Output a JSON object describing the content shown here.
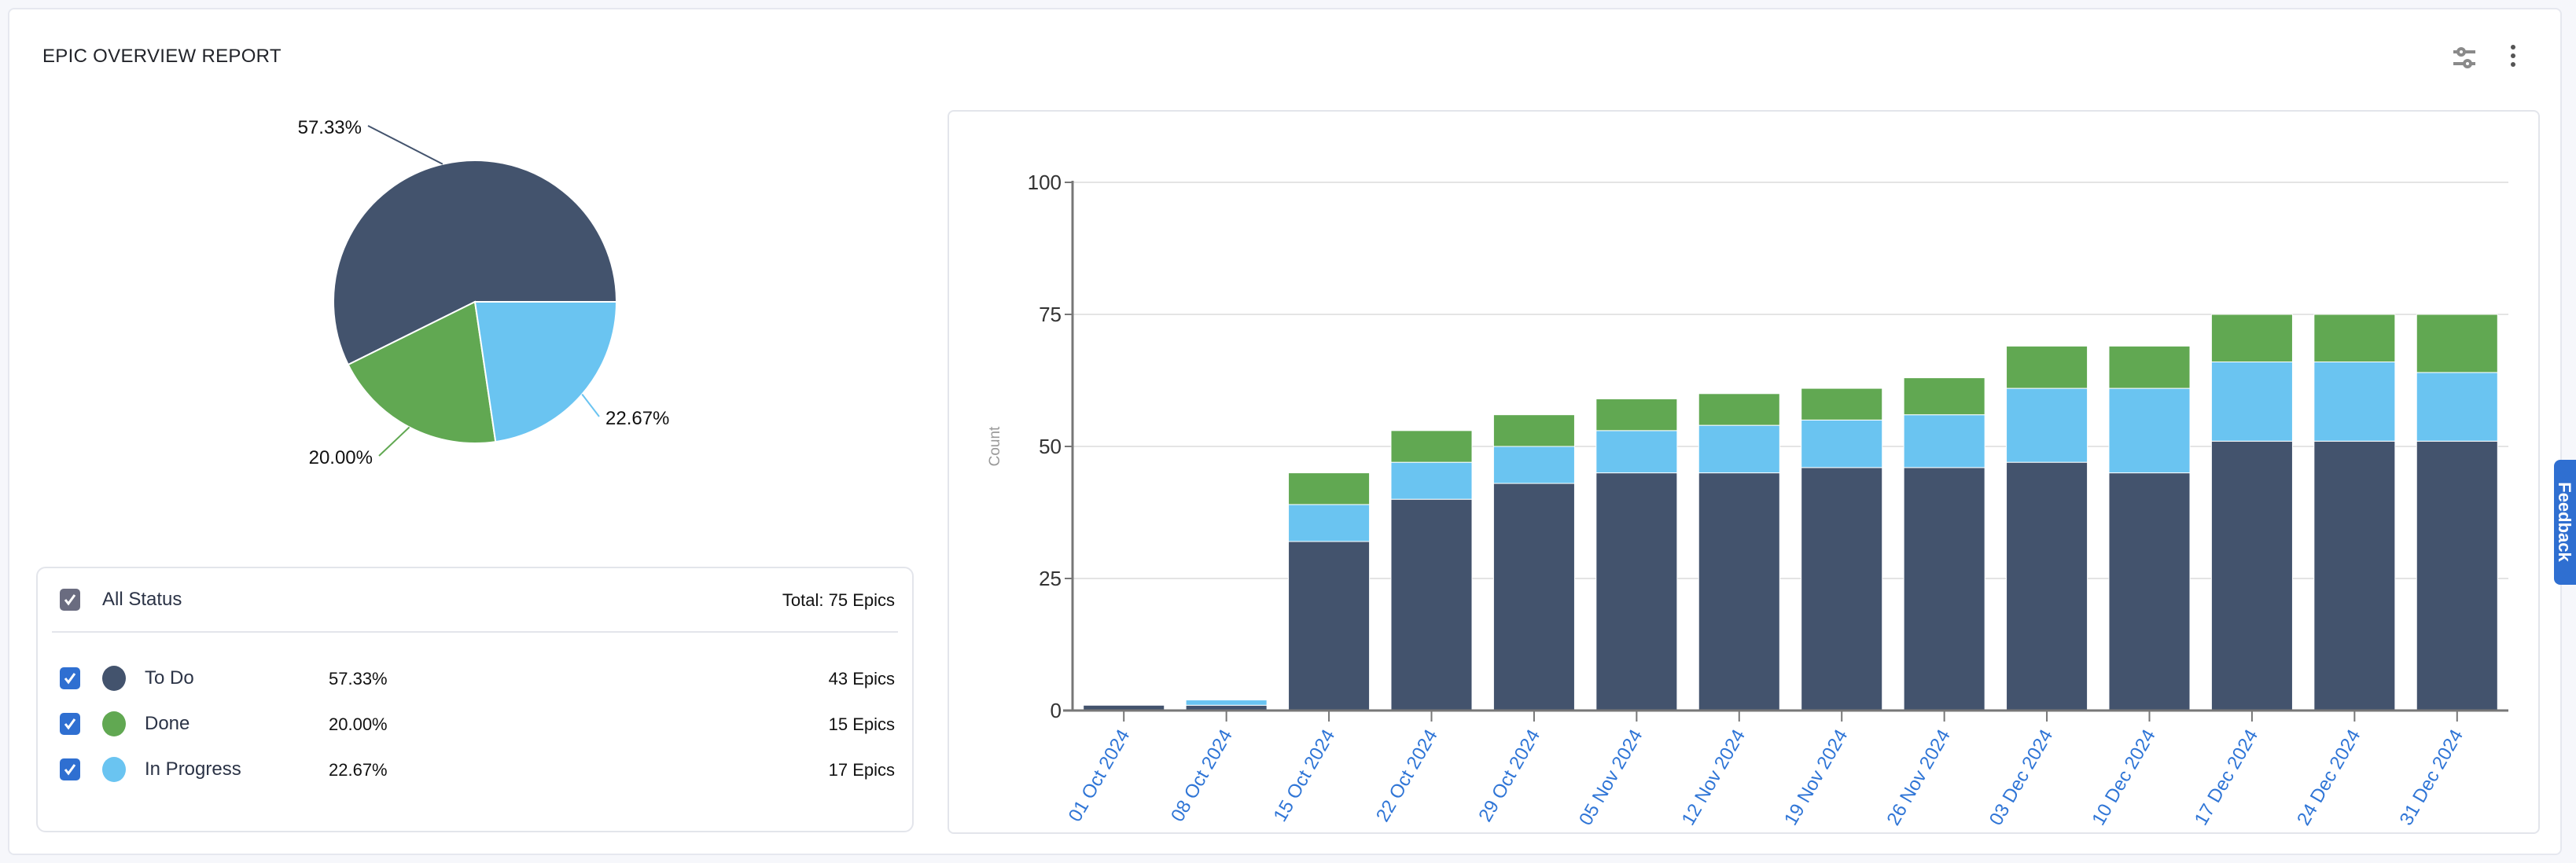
{
  "header": {
    "title": "EPIC OVERVIEW REPORT",
    "filter_icon": "sliders-icon",
    "more_icon": "more-vertical-icon"
  },
  "colors": {
    "todo": "#43536d",
    "done": "#61a852",
    "in_progress": "#6ac4f1",
    "checkbox": "#2f6fd1",
    "checkbox_all": "#6a6c80",
    "tick_label": "#2f75d6"
  },
  "legend": {
    "all_label": "All Status",
    "total": "Total: 75 Epics",
    "items": [
      {
        "label": "To Do",
        "percent": "57.33%",
        "count": "43 Epics",
        "checked": true
      },
      {
        "label": "Done",
        "percent": "20.00%",
        "count": "15 Epics",
        "checked": true
      },
      {
        "label": "In Progress",
        "percent": "22.67%",
        "count": "17 Epics",
        "checked": true
      }
    ]
  },
  "feedback": {
    "label": "Feedback"
  },
  "chart_data": [
    {
      "type": "pie",
      "slices": [
        {
          "label": "To Do",
          "value": 57.33,
          "display": "57.33%"
        },
        {
          "label": "Done",
          "value": 20.0,
          "display": "20.00%"
        },
        {
          "label": "In Progress",
          "value": 22.67,
          "display": "22.67%"
        }
      ]
    },
    {
      "type": "bar",
      "stacked": true,
      "ylabel": "Count",
      "ylim": [
        0,
        100
      ],
      "yticks": [
        0,
        25,
        50,
        75,
        100
      ],
      "grid": true,
      "categories": [
        "01 Oct 2024",
        "08 Oct 2024",
        "15 Oct 2024",
        "22 Oct 2024",
        "29 Oct 2024",
        "05 Nov 2024",
        "12 Nov 2024",
        "19 Nov 2024",
        "26 Nov 2024",
        "03 Dec 2024",
        "10 Dec 2024",
        "17 Dec 2024",
        "24 Dec 2024",
        "31 Dec 2024"
      ],
      "series": [
        {
          "key": "todo",
          "values": [
            1,
            1,
            32,
            40,
            43,
            45,
            45,
            46,
            46,
            47,
            45,
            51,
            51,
            51
          ]
        },
        {
          "key": "in_progress",
          "values": [
            0,
            1,
            7,
            7,
            7,
            8,
            9,
            9,
            10,
            14,
            16,
            15,
            15,
            13
          ]
        },
        {
          "key": "done",
          "values": [
            0,
            0,
            6,
            6,
            6,
            6,
            6,
            6,
            7,
            8,
            8,
            9,
            9,
            11
          ]
        }
      ]
    }
  ]
}
